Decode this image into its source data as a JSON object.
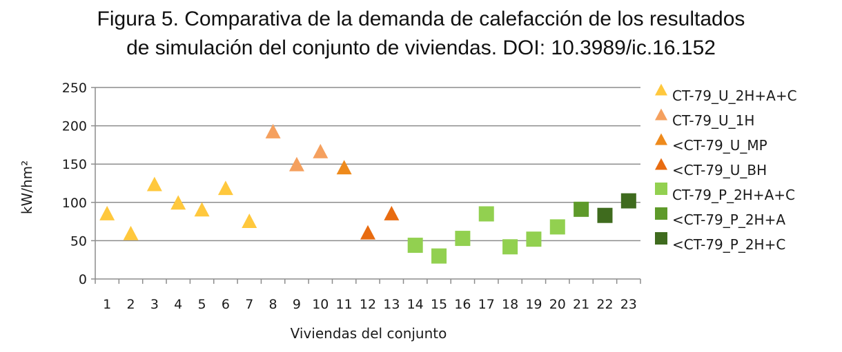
{
  "chart_data": {
    "type": "scatter",
    "title_lines": [
      "Figura 5. Comparativa de la demanda de calefacción de los resultados",
      "de simulación del conjunto de viviendas. DOI: 10.3989/ic.16.152"
    ],
    "xlabel": "Viviendas del conjunto",
    "ylabel": "kW/hm²",
    "ylim": [
      0,
      250
    ],
    "yticks": [
      0,
      50,
      100,
      150,
      200,
      250
    ],
    "categories": [
      "1",
      "2",
      "3",
      "4",
      "5",
      "6",
      "7",
      "8",
      "9",
      "10",
      "11",
      "12",
      "13",
      "14",
      "15",
      "16",
      "17",
      "18",
      "19",
      "20",
      "21",
      "22",
      "23"
    ],
    "grid": "horizontal",
    "legend_position": "right",
    "series": [
      {
        "name": "CT-79_U_2H+A+C",
        "marker": "triangle",
        "color": "#FFC83D",
        "points": [
          {
            "x": 1,
            "y": 86
          },
          {
            "x": 2,
            "y": 60
          },
          {
            "x": 3,
            "y": 124
          },
          {
            "x": 4,
            "y": 100
          },
          {
            "x": 5,
            "y": 91
          },
          {
            "x": 6,
            "y": 119
          },
          {
            "x": 7,
            "y": 76
          }
        ]
      },
      {
        "name": "CT-79_U_1H",
        "marker": "triangle",
        "color": "#F5A05E",
        "points": [
          {
            "x": 8,
            "y": 193
          },
          {
            "x": 9,
            "y": 150
          },
          {
            "x": 10,
            "y": 167
          }
        ]
      },
      {
        "name": "<CT-79_U_MP",
        "marker": "triangle",
        "color": "#EE8A1C",
        "points": [
          {
            "x": 11,
            "y": 146
          }
        ]
      },
      {
        "name": "<CT-79_U_BH",
        "marker": "triangle",
        "color": "#E86B10",
        "points": [
          {
            "x": 12,
            "y": 61
          },
          {
            "x": 13,
            "y": 86
          }
        ]
      },
      {
        "name": "CT-79_P_2H+A+C",
        "marker": "square",
        "color": "#92D050",
        "points": [
          {
            "x": 14,
            "y": 44
          },
          {
            "x": 15,
            "y": 30
          },
          {
            "x": 16,
            "y": 53
          },
          {
            "x": 17,
            "y": 85
          },
          {
            "x": 18,
            "y": 42
          },
          {
            "x": 19,
            "y": 52
          },
          {
            "x": 20,
            "y": 68
          }
        ]
      },
      {
        "name": "<CT-79_P_2H+A",
        "marker": "square",
        "color": "#5E9A2A",
        "points": [
          {
            "x": 21,
            "y": 91
          }
        ]
      },
      {
        "name": "<CT-79_P_2H+C",
        "marker": "square",
        "color": "#3F6B1E",
        "points": [
          {
            "x": 22,
            "y": 83
          },
          {
            "x": 23,
            "y": 102
          }
        ]
      }
    ]
  }
}
